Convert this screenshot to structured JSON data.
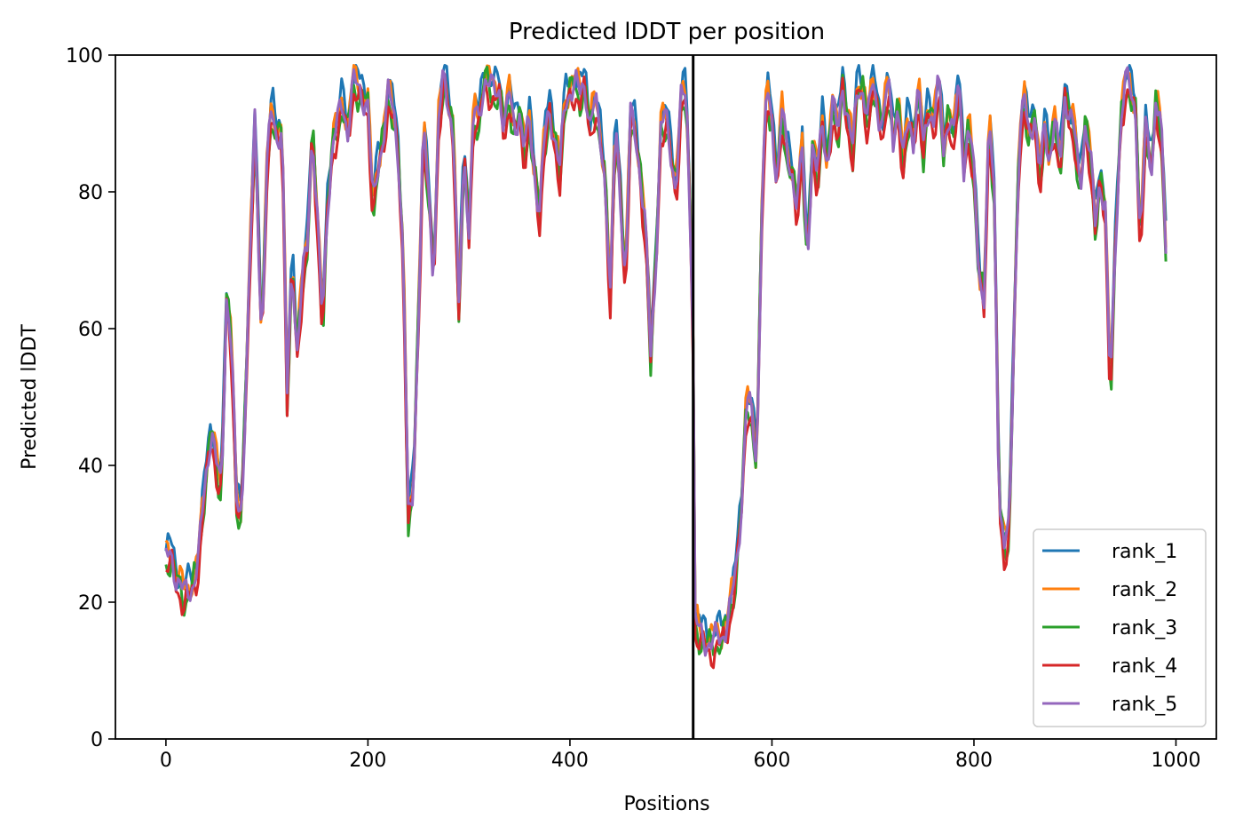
{
  "chart_data": {
    "type": "line",
    "title": "Predicted lDDT per position",
    "xlabel": "Positions",
    "ylabel": "Predicted lDDT",
    "xlim": [
      -50,
      1040
    ],
    "ylim": [
      0,
      100
    ],
    "xticks": [
      0,
      200,
      400,
      600,
      800,
      1000
    ],
    "yticks": [
      0,
      20,
      40,
      60,
      80,
      100
    ],
    "grid": false,
    "legend_position": "lower-right",
    "chain_break": 522,
    "x_range": [
      0,
      990
    ],
    "series": [
      {
        "name": "rank_1",
        "color": "#1f77b4",
        "shift": 1.5
      },
      {
        "name": "rank_2",
        "color": "#ff7f0e",
        "shift": 0.8
      },
      {
        "name": "rank_3",
        "color": "#2ca02c",
        "shift": -0.6
      },
      {
        "name": "rank_4",
        "color": "#d62728",
        "shift": -1.4
      },
      {
        "name": "rank_5",
        "color": "#9467bd",
        "shift": 0.0
      }
    ],
    "profile": [
      [
        0,
        26
      ],
      [
        5,
        27
      ],
      [
        10,
        24
      ],
      [
        18,
        21
      ],
      [
        25,
        22
      ],
      [
        32,
        26
      ],
      [
        38,
        36
      ],
      [
        45,
        46
      ],
      [
        50,
        40
      ],
      [
        55,
        36
      ],
      [
        60,
        65
      ],
      [
        65,
        58
      ],
      [
        70,
        34
      ],
      [
        75,
        33
      ],
      [
        80,
        56
      ],
      [
        88,
        90
      ],
      [
        95,
        58
      ],
      [
        100,
        84
      ],
      [
        105,
        92
      ],
      [
        110,
        88
      ],
      [
        115,
        90
      ],
      [
        120,
        50
      ],
      [
        125,
        70
      ],
      [
        130,
        57
      ],
      [
        135,
        67
      ],
      [
        140,
        72
      ],
      [
        145,
        90
      ],
      [
        150,
        76
      ],
      [
        155,
        60
      ],
      [
        160,
        78
      ],
      [
        165,
        87
      ],
      [
        170,
        90
      ],
      [
        175,
        93
      ],
      [
        180,
        89
      ],
      [
        185,
        96
      ],
      [
        190,
        95
      ],
      [
        200,
        93
      ],
      [
        205,
        77
      ],
      [
        210,
        84
      ],
      [
        215,
        88
      ],
      [
        220,
        94
      ],
      [
        225,
        92
      ],
      [
        230,
        86
      ],
      [
        235,
        70
      ],
      [
        240,
        32
      ],
      [
        245,
        37
      ],
      [
        250,
        62
      ],
      [
        255,
        89
      ],
      [
        260,
        80
      ],
      [
        265,
        68
      ],
      [
        270,
        90
      ],
      [
        275,
        97
      ],
      [
        280,
        93
      ],
      [
        285,
        88
      ],
      [
        290,
        62
      ],
      [
        295,
        86
      ],
      [
        300,
        75
      ],
      [
        305,
        92
      ],
      [
        310,
        90
      ],
      [
        315,
        97
      ],
      [
        320,
        96
      ],
      [
        325,
        94
      ],
      [
        330,
        95
      ],
      [
        335,
        90
      ],
      [
        340,
        94
      ],
      [
        345,
        89
      ],
      [
        350,
        92
      ],
      [
        355,
        86
      ],
      [
        360,
        90
      ],
      [
        365,
        83
      ],
      [
        370,
        77
      ],
      [
        375,
        88
      ],
      [
        380,
        92
      ],
      [
        385,
        88
      ],
      [
        390,
        83
      ],
      [
        395,
        93
      ],
      [
        400,
        95
      ],
      [
        405,
        96
      ],
      [
        410,
        94
      ],
      [
        415,
        96
      ],
      [
        420,
        90
      ],
      [
        425,
        93
      ],
      [
        430,
        88
      ],
      [
        435,
        82
      ],
      [
        440,
        64
      ],
      [
        445,
        90
      ],
      [
        450,
        80
      ],
      [
        455,
        66
      ],
      [
        460,
        91
      ],
      [
        465,
        89
      ],
      [
        470,
        82
      ],
      [
        475,
        74
      ],
      [
        480,
        56
      ],
      [
        485,
        70
      ],
      [
        490,
        89
      ],
      [
        495,
        91
      ],
      [
        500,
        86
      ],
      [
        505,
        80
      ],
      [
        510,
        93
      ],
      [
        515,
        95
      ],
      [
        520,
        72
      ],
      [
        522,
        58
      ],
      [
        523,
        17
      ],
      [
        530,
        15
      ],
      [
        540,
        14
      ],
      [
        550,
        15
      ],
      [
        555,
        17
      ],
      [
        560,
        20
      ],
      [
        565,
        25
      ],
      [
        570,
        35
      ],
      [
        575,
        50
      ],
      [
        580,
        47
      ],
      [
        585,
        40
      ],
      [
        590,
        78
      ],
      [
        595,
        95
      ],
      [
        600,
        90
      ],
      [
        605,
        82
      ],
      [
        610,
        92
      ],
      [
        615,
        85
      ],
      [
        620,
        83
      ],
      [
        625,
        78
      ],
      [
        630,
        86
      ],
      [
        635,
        70
      ],
      [
        640,
        87
      ],
      [
        645,
        82
      ],
      [
        650,
        90
      ],
      [
        655,
        84
      ],
      [
        660,
        93
      ],
      [
        665,
        88
      ],
      [
        670,
        96
      ],
      [
        675,
        91
      ],
      [
        680,
        86
      ],
      [
        685,
        96
      ],
      [
        690,
        95
      ],
      [
        695,
        90
      ],
      [
        700,
        96
      ],
      [
        705,
        92
      ],
      [
        710,
        90
      ],
      [
        715,
        96
      ],
      [
        720,
        88
      ],
      [
        725,
        93
      ],
      [
        730,
        84
      ],
      [
        735,
        91
      ],
      [
        740,
        88
      ],
      [
        745,
        95
      ],
      [
        750,
        86
      ],
      [
        755,
        93
      ],
      [
        760,
        90
      ],
      [
        765,
        96
      ],
      [
        770,
        86
      ],
      [
        775,
        92
      ],
      [
        780,
        88
      ],
      [
        785,
        96
      ],
      [
        790,
        84
      ],
      [
        795,
        90
      ],
      [
        800,
        82
      ],
      [
        805,
        68
      ],
      [
        810,
        65
      ],
      [
        815,
        90
      ],
      [
        820,
        80
      ],
      [
        825,
        35
      ],
      [
        830,
        28
      ],
      [
        835,
        30
      ],
      [
        840,
        62
      ],
      [
        845,
        88
      ],
      [
        850,
        93
      ],
      [
        855,
        88
      ],
      [
        860,
        92
      ],
      [
        865,
        82
      ],
      [
        870,
        89
      ],
      [
        875,
        85
      ],
      [
        880,
        91
      ],
      [
        885,
        83
      ],
      [
        890,
        94
      ],
      [
        895,
        92
      ],
      [
        900,
        88
      ],
      [
        905,
        80
      ],
      [
        910,
        90
      ],
      [
        915,
        86
      ],
      [
        920,
        75
      ],
      [
        925,
        82
      ],
      [
        930,
        78
      ],
      [
        935,
        50
      ],
      [
        940,
        72
      ],
      [
        945,
        90
      ],
      [
        950,
        96
      ],
      [
        955,
        95
      ],
      [
        960,
        92
      ],
      [
        965,
        72
      ],
      [
        970,
        90
      ],
      [
        975,
        83
      ],
      [
        980,
        93
      ],
      [
        985,
        90
      ],
      [
        990,
        72
      ]
    ]
  }
}
